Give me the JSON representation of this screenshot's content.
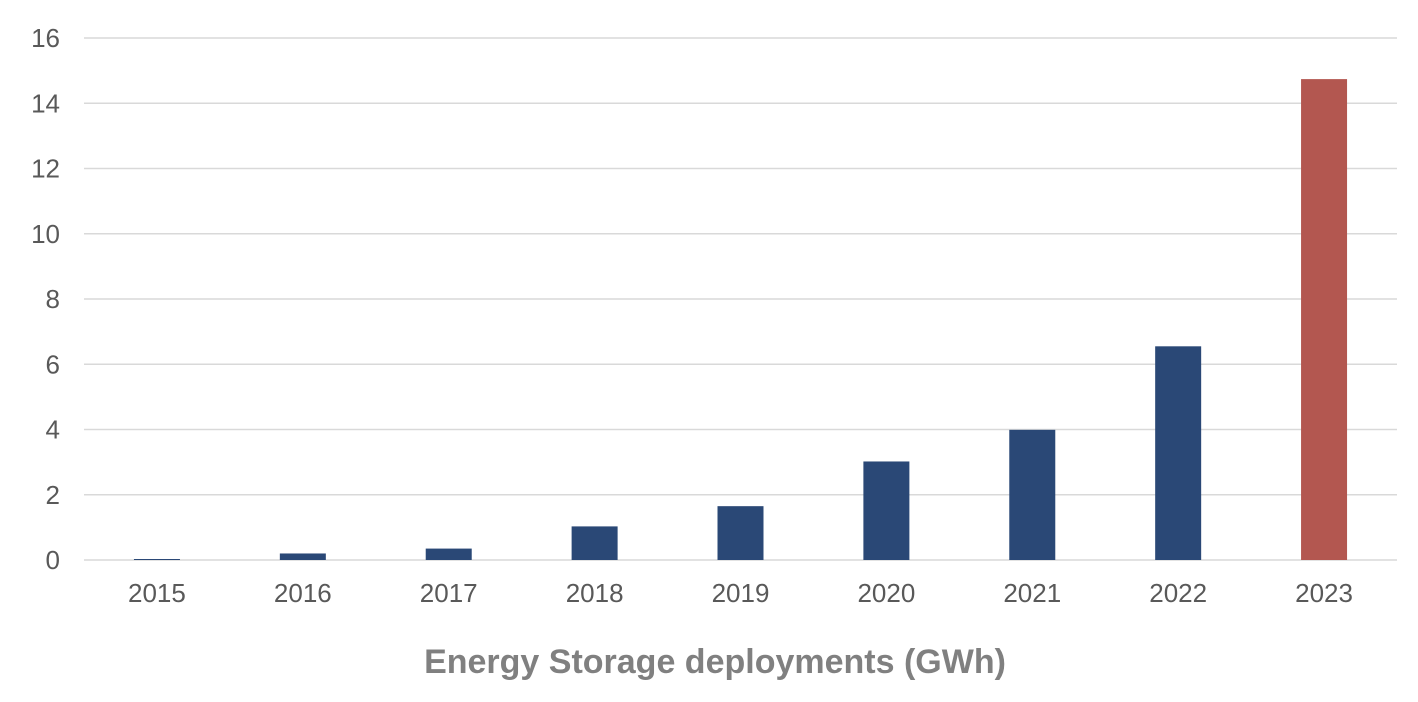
{
  "chart_data": {
    "type": "bar",
    "title": "",
    "xlabel": "Energy Storage deployments (GWh)",
    "ylabel": "",
    "categories": [
      "2015",
      "2016",
      "2017",
      "2018",
      "2019",
      "2020",
      "2021",
      "2022",
      "2023"
    ],
    "values": [
      0.02,
      0.2,
      0.35,
      1.03,
      1.65,
      3.02,
      3.99,
      6.55,
      14.74
    ],
    "ylim": [
      0,
      16
    ],
    "yticks": [
      "0",
      "2",
      "4",
      "6",
      "8",
      "10",
      "12",
      "14",
      "16"
    ],
    "grid": true,
    "legend": "none",
    "colors": {
      "bar": "#2a4876",
      "highlight": "#b35750",
      "grid": "#d9d9d9",
      "tick_text": "#595959",
      "label_text": "#808080"
    },
    "highlight_index": 8
  }
}
